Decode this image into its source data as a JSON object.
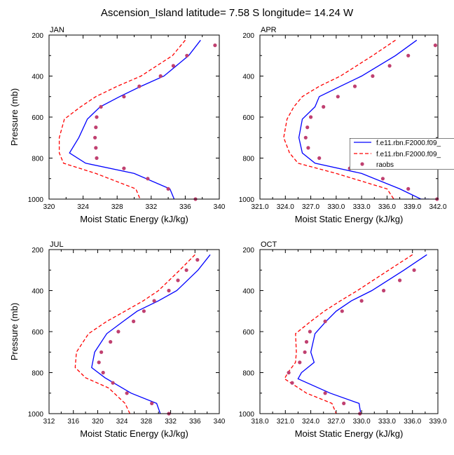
{
  "title": "Ascension_Island  latitude= 7.58 S longitude= 14.24 W",
  "chart_data": [
    {
      "type": "line",
      "panel": "JAN",
      "xlabel": "Moist Static Energy (kJ/kg)",
      "ylabel": "Pressure (mb)",
      "xlim": [
        320,
        340
      ],
      "ylim": [
        1000,
        200
      ],
      "xticks": [
        "320",
        "324",
        "328",
        "332",
        "336",
        "340"
      ],
      "yticks": [
        "200",
        "400",
        "600",
        "800",
        "1000"
      ],
      "series": [
        {
          "name": "f.e11.rbn.F2000.f09_",
          "color": "#0000ff",
          "style": "solid",
          "x": [
            337.8,
            336.4,
            333.5,
            330.8,
            328.3,
            326.0,
            324.5,
            323.5,
            322.4,
            324.3,
            330.0,
            334.2,
            334.7
          ],
          "y": [
            225,
            300,
            400,
            450,
            500,
            550,
            610,
            700,
            775,
            825,
            875,
            950,
            1000
          ]
        },
        {
          "name": "f.e11.rbn.F2000.f09_",
          "color": "#ff0000",
          "style": "dashed",
          "x": [
            336.0,
            334.5,
            330.8,
            328.0,
            325.5,
            323.7,
            321.8,
            321.2,
            321.2,
            321.7,
            325.5,
            330.2,
            330.7
          ],
          "y": [
            225,
            300,
            400,
            450,
            500,
            550,
            610,
            700,
            775,
            825,
            875,
            950,
            1000
          ]
        }
      ],
      "raobs": {
        "name": "raobs",
        "color": "#c04070",
        "x": [
          339.5,
          336.2,
          334.6,
          333.1,
          330.6,
          328.8,
          326.1,
          325.6,
          325.5,
          325.4,
          325.5,
          325.6,
          328.8,
          331.6,
          334.0,
          337.2
        ],
        "y": [
          250,
          300,
          350,
          400,
          450,
          500,
          550,
          600,
          650,
          700,
          750,
          800,
          850,
          900,
          950,
          1000
        ]
      }
    },
    {
      "type": "line",
      "panel": "APR",
      "xlabel": "Moist Static Energy (kJ/kg)",
      "ylabel": "",
      "xlim": [
        321,
        342
      ],
      "ylim": [
        1000,
        200
      ],
      "xticks": [
        "321.0",
        "324.0",
        "327.0",
        "330.0",
        "333.0",
        "336.0",
        "339.0",
        "342.0"
      ],
      "yticks": [
        "200",
        "400",
        "600",
        "800",
        "1000"
      ],
      "series": [
        {
          "name": "f.e11.rbn.F2000.f09_",
          "color": "#0000ff",
          "style": "solid",
          "x": [
            339.5,
            337.0,
            333.0,
            330.5,
            328.0,
            327.5,
            326.0,
            325.6,
            326.0,
            327.5,
            333.0,
            337.5,
            340.0,
            341.0
          ],
          "y": [
            225,
            300,
            400,
            450,
            500,
            550,
            610,
            700,
            775,
            825,
            875,
            950,
            1000,
            1000
          ]
        },
        {
          "name": "f.e11.rbn.F2000.f09_",
          "color": "#ff0000",
          "style": "dashed",
          "x": [
            337.0,
            334.3,
            330.5,
            328.0,
            326.0,
            325.0,
            324.2,
            323.8,
            324.5,
            325.5,
            330.0,
            336.0,
            336.8
          ],
          "y": [
            225,
            300,
            400,
            450,
            500,
            550,
            610,
            700,
            775,
            825,
            875,
            950,
            1000
          ]
        }
      ],
      "raobs": {
        "name": "raobs",
        "color": "#c04070",
        "x": [
          341.7,
          338.5,
          336.3,
          334.3,
          332.2,
          330.2,
          328.5,
          327.0,
          326.6,
          326.4,
          326.7,
          328.0,
          331.6,
          335.5,
          338.5,
          341.9
        ],
        "y": [
          250,
          300,
          350,
          400,
          450,
          500,
          550,
          600,
          650,
          700,
          750,
          800,
          850,
          900,
          950,
          1000
        ]
      }
    },
    {
      "type": "line",
      "panel": "JUL",
      "xlabel": "Moist Static Energy (kJ/kg)",
      "ylabel": "Pressure (mb)",
      "xlim": [
        312,
        340
      ],
      "ylim": [
        1000,
        200
      ],
      "xticks": [
        "312",
        "316",
        "320",
        "324",
        "328",
        "332",
        "336",
        "340"
      ],
      "yticks": [
        "200",
        "400",
        "600",
        "800",
        "1000"
      ],
      "series": [
        {
          "name": "f.e11.rbn.F2000.f09_",
          "color": "#0000ff",
          "style": "solid",
          "x": [
            338.5,
            336.5,
            333.0,
            330.0,
            326.5,
            324.2,
            321.5,
            319.5,
            319.0,
            319.2,
            321.2,
            325.5,
            329.7,
            330.3
          ],
          "y": [
            225,
            300,
            400,
            450,
            500,
            550,
            610,
            700,
            775,
            780,
            825,
            900,
            950,
            1000
          ]
        },
        {
          "name": "f.e11.rbn.F2000.f09_",
          "color": "#ff0000",
          "style": "dashed",
          "x": [
            336.0,
            333.5,
            330.0,
            327.5,
            324.5,
            321.5,
            318.5,
            316.5,
            316.3,
            318.0,
            321.8,
            324.5,
            325.3
          ],
          "y": [
            225,
            300,
            400,
            450,
            500,
            550,
            610,
            700,
            775,
            825,
            875,
            950,
            1000
          ]
        }
      ],
      "raobs": {
        "name": "raobs",
        "color": "#c04070",
        "x": [
          336.4,
          334.6,
          333.2,
          331.7,
          329.3,
          327.6,
          325.9,
          323.4,
          322.1,
          320.6,
          320.2,
          320.9,
          322.5,
          324.8,
          328.9,
          331.7
        ],
        "y": [
          250,
          300,
          350,
          400,
          450,
          500,
          550,
          600,
          650,
          700,
          750,
          800,
          850,
          900,
          950,
          1000
        ]
      }
    },
    {
      "type": "line",
      "panel": "OCT",
      "xlabel": "Moist Static Energy (kJ/kg)",
      "ylabel": "",
      "xlim": [
        318,
        339
      ],
      "ylim": [
        1000,
        200
      ],
      "xticks": [
        "318.0",
        "321.0",
        "324.0",
        "327.0",
        "330.0",
        "333.0",
        "336.0",
        "339.0"
      ],
      "yticks": [
        "200",
        "400",
        "600",
        "800",
        "1000"
      ],
      "series": [
        {
          "name": "f.e11.rbn.F2000.f09_",
          "color": "#0000ff",
          "style": "solid",
          "x": [
            337.7,
            335.0,
            331.2,
            328.8,
            327.0,
            325.8,
            324.5,
            324.0,
            324.4,
            322.9,
            322.5,
            326.3,
            329.7,
            329.9
          ],
          "y": [
            225,
            300,
            400,
            450,
            500,
            550,
            610,
            700,
            750,
            800,
            830,
            900,
            950,
            1000
          ]
        },
        {
          "name": "f.e11.rbn.F2000.f09_",
          "color": "#ff0000",
          "style": "dashed",
          "x": [
            336.0,
            333.2,
            329.5,
            327.5,
            325.6,
            324.0,
            322.2,
            322.3,
            322.2,
            321.3,
            320.9,
            323.5,
            326.5,
            327.0
          ],
          "y": [
            225,
            300,
            400,
            450,
            500,
            550,
            610,
            700,
            750,
            800,
            830,
            900,
            950,
            1000
          ]
        }
      ],
      "raobs": {
        "name": "raobs",
        "color": "#c04070",
        "x": [
          336.2,
          334.5,
          332.6,
          330.0,
          327.7,
          325.7,
          323.9,
          323.5,
          323.3,
          322.7,
          321.4,
          321.8,
          325.7,
          327.9,
          329.8
        ],
        "y": [
          300,
          350,
          400,
          450,
          500,
          550,
          600,
          650,
          700,
          750,
          800,
          850,
          900,
          950,
          1000
        ]
      }
    }
  ],
  "legend": {
    "placement": "right-of-APR",
    "entries": [
      {
        "label": "f.e11.rbn.F2000.f09_",
        "color": "#0000ff",
        "style": "solid"
      },
      {
        "label": "f.e11.rbn.F2000.f09_",
        "color": "#ff0000",
        "style": "dashed"
      },
      {
        "label": "raobs",
        "color": "#c04070",
        "style": "marker"
      }
    ]
  }
}
